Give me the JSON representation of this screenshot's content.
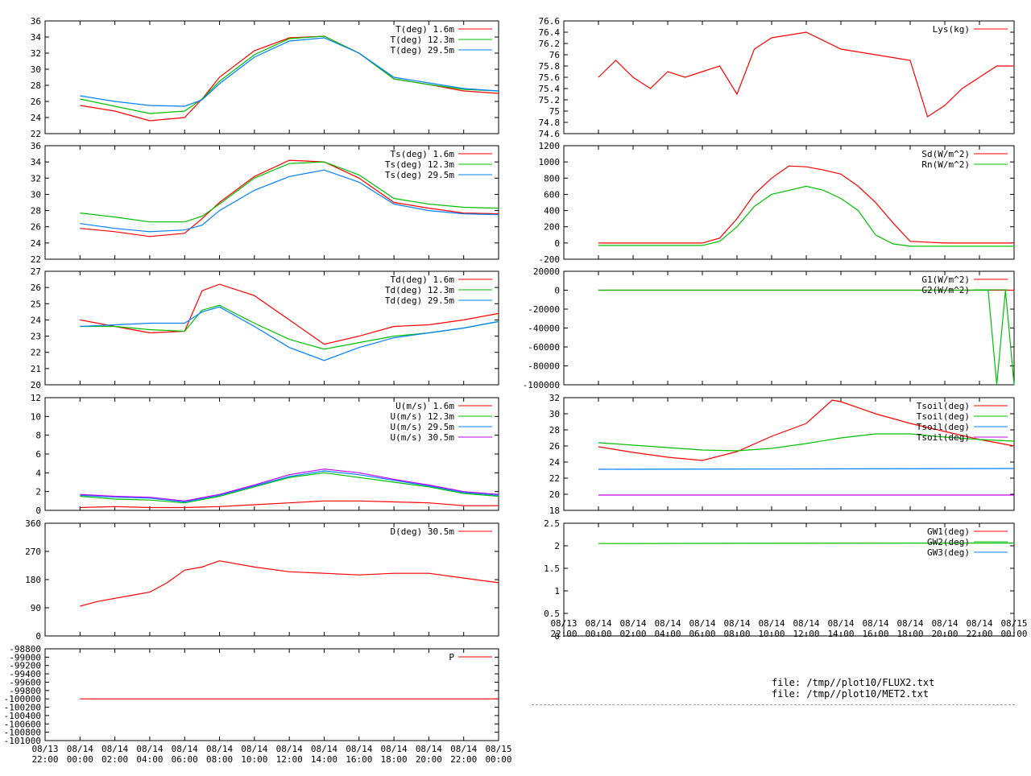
{
  "x_axis": {
    "ticks": [
      "08/13\n22:00",
      "08/14\n00:00",
      "08/14\n02:00",
      "08/14\n04:00",
      "08/14\n06:00",
      "08/14\n08:00",
      "08/14\n10:00",
      "08/14\n12:00",
      "08/14\n14:00",
      "08/14\n16:00",
      "08/14\n18:00",
      "08/14\n20:00",
      "08/14\n22:00",
      "08/15\n00:00"
    ],
    "range_hours": [
      -2,
      24
    ]
  },
  "footer": {
    "file1": "file: /tmp//plot10/FLUX2.txt",
    "file2": "file: /tmp//plot10/MET2.txt"
  },
  "colors": {
    "red": "#ff0000",
    "green": "#00c000",
    "blue": "#0080ff",
    "magenta": "#c000ff",
    "brown": "#a05000"
  },
  "chart_data": [
    {
      "id": "air-temp",
      "type": "line",
      "ylim": [
        22,
        36
      ],
      "yticks": [
        "22",
        "24",
        "26",
        "28",
        "30",
        "32",
        "34",
        "36"
      ],
      "series": [
        {
          "name": "T(deg)  1.6m",
          "color": "#ff0000",
          "x": [
            0,
            2,
            4,
            6,
            7,
            8,
            10,
            12,
            14,
            16,
            18,
            20,
            22,
            24
          ],
          "y": [
            25.5,
            24.8,
            23.6,
            24,
            26.3,
            29,
            32.3,
            33.9,
            34.1,
            32,
            28.8,
            28.1,
            27.3,
            27
          ]
        },
        {
          "name": "T(deg) 12.3m",
          "color": "#00c000",
          "x": [
            0,
            2,
            4,
            6,
            7,
            8,
            10,
            12,
            14,
            16,
            18,
            20,
            22,
            24
          ],
          "y": [
            26.3,
            25.4,
            24.5,
            24.8,
            26.3,
            28.5,
            31.8,
            33.8,
            34.1,
            32,
            28.8,
            28.1,
            27.5,
            27.3
          ]
        },
        {
          "name": "T(deg) 29.5m",
          "color": "#0080ff",
          "x": [
            0,
            2,
            4,
            6,
            7,
            8,
            10,
            12,
            14,
            16,
            18,
            20,
            22,
            24
          ],
          "y": [
            26.7,
            26,
            25.5,
            25.4,
            26.2,
            28.2,
            31.5,
            33.5,
            33.9,
            32,
            29,
            28.3,
            27.6,
            27.3
          ]
        }
      ]
    },
    {
      "id": "surface-temp",
      "type": "line",
      "ylim": [
        22,
        36
      ],
      "yticks": [
        "22",
        "24",
        "26",
        "28",
        "30",
        "32",
        "34",
        "36"
      ],
      "series": [
        {
          "name": "Ts(deg)  1.6m",
          "color": "#ff0000",
          "x": [
            0,
            2,
            4,
            6,
            7,
            8,
            10,
            12,
            14,
            16,
            18,
            20,
            22,
            24
          ],
          "y": [
            25.8,
            25.4,
            24.8,
            25.2,
            27,
            29,
            32.2,
            34.2,
            34,
            32,
            29,
            28.3,
            27.7,
            27.6
          ]
        },
        {
          "name": "Ts(deg) 12.3m",
          "color": "#00c000",
          "x": [
            0,
            2,
            4,
            6,
            7,
            8,
            10,
            12,
            14,
            16,
            18,
            20,
            22,
            24
          ],
          "y": [
            27.7,
            27.2,
            26.6,
            26.6,
            27.3,
            28.8,
            32,
            33.8,
            34,
            32.4,
            29.5,
            28.8,
            28.4,
            28.3
          ]
        },
        {
          "name": "Ts(deg) 29.5m",
          "color": "#0080ff",
          "x": [
            0,
            2,
            4,
            6,
            7,
            8,
            10,
            12,
            14,
            16,
            18,
            20,
            22,
            24
          ],
          "y": [
            26.4,
            25.8,
            25.4,
            25.6,
            26.2,
            28,
            30.5,
            32.2,
            33,
            31.5,
            28.8,
            28,
            27.6,
            27.5
          ]
        }
      ]
    },
    {
      "id": "dew-point",
      "type": "line",
      "ylim": [
        20,
        27
      ],
      "yticks": [
        "20",
        "21",
        "22",
        "23",
        "24",
        "25",
        "26",
        "27"
      ],
      "series": [
        {
          "name": "Td(deg)  1.6m",
          "color": "#ff0000",
          "x": [
            0,
            2,
            4,
            6,
            7,
            8,
            10,
            12,
            14,
            16,
            18,
            20,
            22,
            24
          ],
          "y": [
            24,
            23.6,
            23.2,
            23.3,
            25.8,
            26.2,
            25.5,
            24,
            22.5,
            23,
            23.6,
            23.7,
            24,
            24.4
          ]
        },
        {
          "name": "Td(deg) 12.3m",
          "color": "#00c000",
          "x": [
            0,
            2,
            4,
            6,
            7,
            8,
            10,
            12,
            14,
            16,
            18,
            20,
            22,
            24
          ],
          "y": [
            23.6,
            23.6,
            23.4,
            23.3,
            24.6,
            24.9,
            23.8,
            22.8,
            22.2,
            22.6,
            23,
            23.2,
            23.5,
            23.9
          ]
        },
        {
          "name": "Td(deg) 29.5m",
          "color": "#0080ff",
          "x": [
            0,
            2,
            4,
            6,
            7,
            8,
            10,
            12,
            14,
            16,
            18,
            20,
            22,
            24
          ],
          "y": [
            23.6,
            23.7,
            23.8,
            23.8,
            24.5,
            24.8,
            23.6,
            22.3,
            21.5,
            22.3,
            22.9,
            23.2,
            23.5,
            23.9
          ]
        }
      ]
    },
    {
      "id": "wind-speed",
      "type": "line",
      "ylim": [
        0,
        12
      ],
      "yticks": [
        "0",
        "2",
        "4",
        "6",
        "8",
        "10",
        "12"
      ],
      "series": [
        {
          "name": "U(m/s)  1.6m",
          "color": "#ff0000",
          "x": [
            0,
            2,
            4,
            6,
            8,
            10,
            12,
            14,
            16,
            18,
            20,
            22,
            24
          ],
          "y": [
            0.3,
            0.4,
            0.3,
            0.3,
            0.4,
            0.6,
            0.8,
            1,
            1,
            0.9,
            0.8,
            0.5,
            0.5
          ]
        },
        {
          "name": "U(m/s) 12.3m",
          "color": "#00c000",
          "x": [
            0,
            2,
            4,
            6,
            8,
            10,
            12,
            14,
            16,
            18,
            20,
            22,
            24
          ],
          "y": [
            1.5,
            1.2,
            1.1,
            0.8,
            1.5,
            2.5,
            3.5,
            4,
            3.5,
            3,
            2.5,
            1.8,
            1.5
          ]
        },
        {
          "name": "U(m/s) 29.5m",
          "color": "#0080ff",
          "x": [
            0,
            2,
            4,
            6,
            8,
            10,
            12,
            14,
            16,
            18,
            20,
            22,
            24
          ],
          "y": [
            1.6,
            1.4,
            1.3,
            0.9,
            1.6,
            2.6,
            3.6,
            4.2,
            3.8,
            3.2,
            2.6,
            1.9,
            1.6
          ]
        },
        {
          "name": "U(m/s) 30.5m",
          "color": "#c000ff",
          "x": [
            0,
            2,
            4,
            6,
            8,
            10,
            12,
            14,
            16,
            18,
            20,
            22,
            24
          ],
          "y": [
            1.7,
            1.5,
            1.4,
            1,
            1.7,
            2.7,
            3.8,
            4.4,
            4,
            3.3,
            2.7,
            2,
            1.7
          ]
        }
      ]
    },
    {
      "id": "wind-direction",
      "type": "line",
      "ylim": [
        0,
        360
      ],
      "yticks": [
        "0",
        "90",
        "180",
        "270",
        "360"
      ],
      "series": [
        {
          "name": "D(deg)  30.5m",
          "color": "#ff0000",
          "x": [
            0,
            1,
            2,
            3,
            4,
            5,
            6,
            7,
            8,
            10,
            12,
            14,
            16,
            18,
            20,
            22,
            24
          ],
          "y": [
            95,
            110,
            120,
            130,
            140,
            170,
            210,
            220,
            240,
            220,
            205,
            200,
            195,
            200,
            200,
            185,
            170
          ]
        }
      ]
    },
    {
      "id": "pressure",
      "type": "line",
      "ylim": [
        -101000,
        -98800
      ],
      "yticks": [
        "-101000",
        "-100800",
        "-100600",
        "-100400",
        "-100200",
        "-100000",
        "-99800",
        "-99600",
        "-99400",
        "-99200",
        "-99000",
        "-98800"
      ],
      "series": [
        {
          "name": "P",
          "color": "#ff0000",
          "x": [
            0,
            24
          ],
          "y": [
            -100000,
            -100000
          ]
        }
      ]
    },
    {
      "id": "lysimeter",
      "type": "line",
      "ylim": [
        74.6,
        76.6
      ],
      "yticks": [
        "74.6",
        "74.8",
        "75",
        "75.2",
        "75.4",
        "75.6",
        "75.8",
        "76",
        "76.2",
        "76.4",
        "76.6"
      ],
      "series": [
        {
          "name": "Lys(kg)",
          "color": "#ff0000",
          "x": [
            0,
            1,
            2,
            3,
            4,
            5,
            6,
            7,
            8,
            9,
            10,
            12,
            14,
            16,
            18,
            19,
            20,
            21,
            22,
            23,
            24
          ],
          "y": [
            75.6,
            75.9,
            75.6,
            75.4,
            75.7,
            75.6,
            75.7,
            75.8,
            75.3,
            76.1,
            76.3,
            76.4,
            76.1,
            76,
            75.9,
            74.9,
            75.1,
            75.4,
            75.6,
            75.8,
            75.8
          ]
        }
      ]
    },
    {
      "id": "radiation",
      "type": "line",
      "ylim": [
        -200,
        1200
      ],
      "yticks": [
        "-200",
        "0",
        "200",
        "400",
        "600",
        "800",
        "1000",
        "1200"
      ],
      "series": [
        {
          "name": "Sd(W/m^2)",
          "color": "#ff0000",
          "x": [
            0,
            2,
            4,
            6,
            7,
            8,
            9,
            10,
            11,
            12,
            13,
            14,
            15,
            16,
            17,
            18,
            20,
            22,
            24
          ],
          "y": [
            0,
            0,
            0,
            0,
            60,
            300,
            600,
            800,
            950,
            940,
            900,
            850,
            700,
            500,
            250,
            20,
            0,
            0,
            0
          ]
        },
        {
          "name": "Rn(W/m^2)",
          "color": "#00c000",
          "x": [
            0,
            2,
            4,
            6,
            7,
            8,
            9,
            10,
            11,
            12,
            13,
            14,
            15,
            16,
            17,
            18,
            20,
            22,
            24
          ],
          "y": [
            -30,
            -30,
            -30,
            -30,
            20,
            200,
            450,
            600,
            650,
            700,
            650,
            550,
            400,
            100,
            -10,
            -40,
            -40,
            -40,
            -40
          ]
        }
      ]
    },
    {
      "id": "soil-heat-flux",
      "type": "line",
      "ylim": [
        -100000,
        20000
      ],
      "yticks": [
        "-100000",
        "-80000",
        "-60000",
        "-40000",
        "-20000",
        "0",
        "20000"
      ],
      "series": [
        {
          "name": "G1(W/m^2)",
          "color": "#ff0000",
          "x": [
            0,
            24
          ],
          "y": [
            0,
            0
          ]
        },
        {
          "name": "G2(W/m^2)",
          "color": "#00c000",
          "x": [
            0,
            22.5,
            23,
            23.5,
            24
          ],
          "y": [
            0,
            0,
            -100000,
            0,
            -100000
          ]
        }
      ]
    },
    {
      "id": "soil-temp",
      "type": "line",
      "ylim": [
        18,
        32
      ],
      "yticks": [
        "18",
        "20",
        "22",
        "24",
        "26",
        "28",
        "30",
        "32"
      ],
      "series": [
        {
          "name": "Tsoil(deg)",
          "color": "#ff0000",
          "x": [
            0,
            2,
            4,
            6,
            8,
            10,
            12,
            13.5,
            14,
            16,
            18,
            20,
            22,
            24
          ],
          "y": [
            25.9,
            25.2,
            24.6,
            24.2,
            25.3,
            27.2,
            28.8,
            31.7,
            31.5,
            30,
            28.8,
            27.8,
            26.8,
            26
          ]
        },
        {
          "name": "Tsoil(deg)",
          "color": "#00c000",
          "x": [
            0,
            2,
            4,
            6,
            8,
            10,
            12,
            14,
            16,
            18,
            20,
            22,
            24
          ],
          "y": [
            26.4,
            26.1,
            25.8,
            25.5,
            25.4,
            25.7,
            26.3,
            27,
            27.5,
            27.5,
            27.1,
            26.8,
            26.6
          ]
        },
        {
          "name": "Tsoil(deg)",
          "color": "#0080ff",
          "x": [
            0,
            24
          ],
          "y": [
            23.1,
            23.2
          ]
        },
        {
          "name": "Tsoil(deg)",
          "color": "#c000ff",
          "x": [
            0,
            24
          ],
          "y": [
            19.9,
            19.9
          ]
        }
      ]
    },
    {
      "id": "ground-water",
      "type": "line",
      "ylim": [
        0,
        2.5
      ],
      "yticks": [
        "0",
        "0.5",
        "1",
        "1.5",
        "2",
        "2.5"
      ],
      "series": [
        {
          "name": "GW1(deg)",
          "color": "#ff0000",
          "x": [],
          "y": []
        },
        {
          "name": "GW2(deg)",
          "color": "#00c000",
          "x": [
            0,
            24
          ],
          "y": [
            2.05,
            2.06
          ]
        },
        {
          "name": "GW3(deg)",
          "color": "#0080ff",
          "x": [],
          "y": []
        }
      ]
    }
  ]
}
